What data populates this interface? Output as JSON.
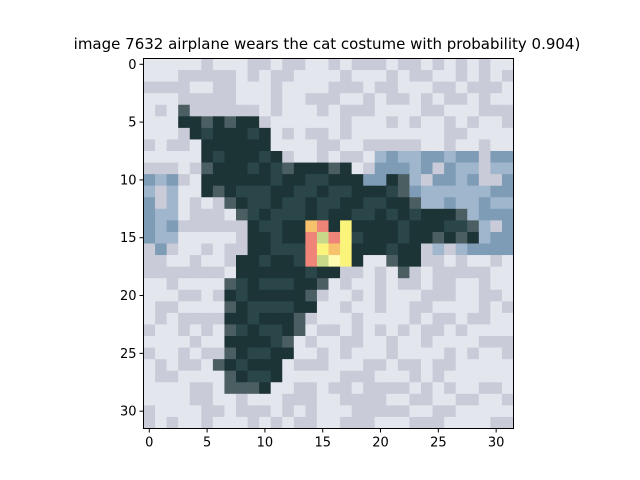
{
  "chart_data": {
    "type": "heatmap",
    "title": "image 7632  airplane wears the cat costume with probability 0.904)",
    "xlabel": "",
    "ylabel": "",
    "x_ticks": [
      "0",
      "5",
      "10",
      "15",
      "20",
      "25",
      "30"
    ],
    "y_ticks": [
      "0",
      "5",
      "10",
      "15",
      "20",
      "25",
      "30"
    ],
    "xlim": [
      -0.5,
      31.5
    ],
    "ylim": [
      31.5,
      -0.5
    ],
    "grid": false,
    "image_size": [
      32,
      32
    ],
    "colors": {
      "sky_light": "#e4e6ee",
      "sky_mid": "#c9ccd8",
      "sky_blue": "#9fb6cc",
      "sky_blue_dark": "#7f9cb6",
      "plane_dark": "#1c3436",
      "plane_mid": "#2a4648",
      "plane_edge": "#4b5f63",
      "patch_yellow": "#fbf47a",
      "patch_orange": "#f6c36c",
      "patch_red": "#ef8478",
      "patch_green": "#c9d98a",
      "patch_pale": "#fdfbb0"
    },
    "adversarial_patch": {
      "rows": [
        14,
        15,
        16,
        17
      ],
      "cols": [
        14,
        15,
        16,
        17
      ],
      "pattern": [
        [
          "patch_orange",
          "patch_red",
          "plane_dark",
          "patch_yellow"
        ],
        [
          "patch_red",
          "patch_green",
          "patch_red",
          "patch_yellow"
        ],
        [
          "patch_red",
          "patch_yellow",
          "patch_orange",
          "patch_yellow"
        ],
        [
          "patch_red",
          "patch_green",
          "patch_pale",
          "patch_yellow"
        ]
      ]
    }
  }
}
